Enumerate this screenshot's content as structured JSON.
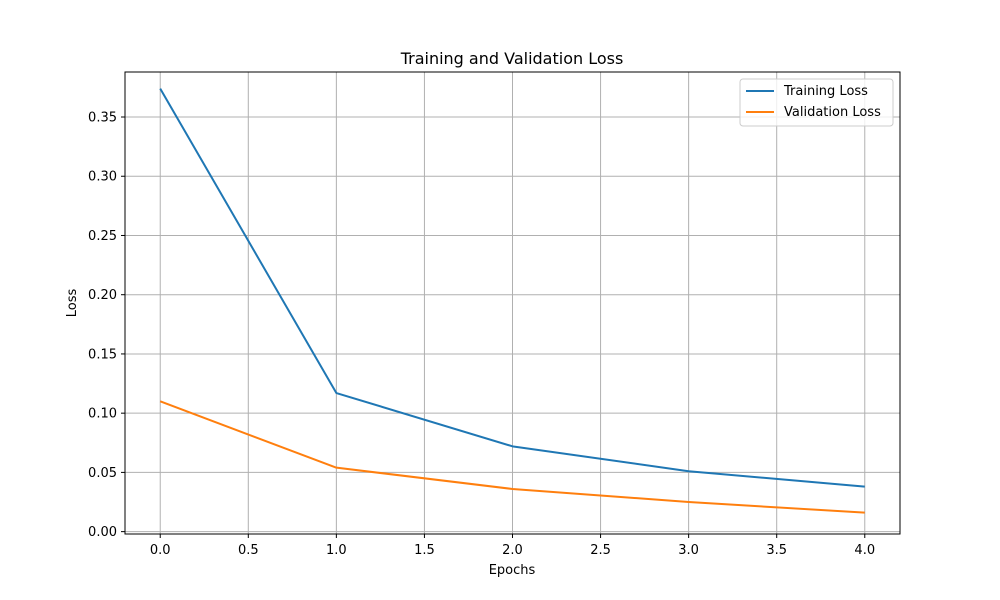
{
  "chart_data": {
    "type": "line",
    "title": "Training and Validation Loss",
    "xlabel": "Epochs",
    "ylabel": "Loss",
    "x": [
      0,
      1,
      2,
      3,
      4
    ],
    "xlim": [
      -0.2,
      4.2
    ],
    "ylim": [
      -0.002,
      0.388
    ],
    "xticks": [
      0.0,
      0.5,
      1.0,
      1.5,
      2.0,
      2.5,
      3.0,
      3.5,
      4.0
    ],
    "xtick_labels": [
      "0.0",
      "0.5",
      "1.0",
      "1.5",
      "2.0",
      "2.5",
      "3.0",
      "3.5",
      "4.0"
    ],
    "yticks": [
      0.0,
      0.05,
      0.1,
      0.15,
      0.2,
      0.25,
      0.3,
      0.35
    ],
    "ytick_labels": [
      "0.00",
      "0.05",
      "0.10",
      "0.15",
      "0.20",
      "0.25",
      "0.30",
      "0.35"
    ],
    "grid": true,
    "legend_position": "top-right",
    "series": [
      {
        "name": "Training Loss",
        "color": "#1f77b4",
        "values": [
          0.374,
          0.117,
          0.072,
          0.051,
          0.038
        ]
      },
      {
        "name": "Validation Loss",
        "color": "#ff7f0e",
        "values": [
          0.11,
          0.054,
          0.036,
          0.025,
          0.016
        ]
      }
    ]
  }
}
